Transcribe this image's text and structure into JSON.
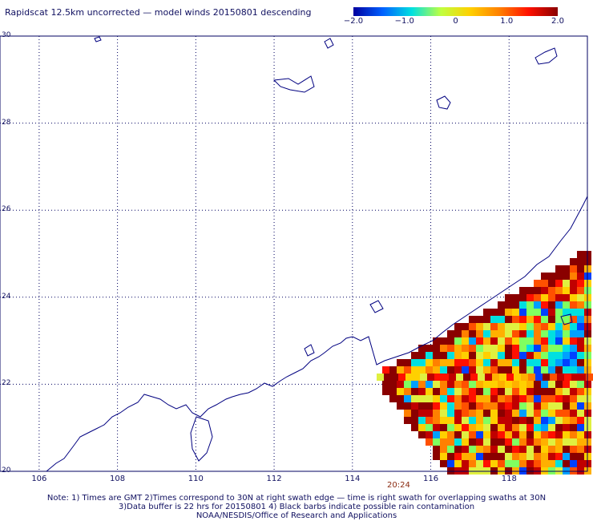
{
  "title": "Rapidscat 12.5km uncorrected — model winds 20150801 descending",
  "colorbar": {
    "ticks": [
      "−2.0",
      "−1.0",
      "0",
      "1.0",
      "2.0"
    ],
    "tick_values": [
      -2.0,
      -1.0,
      0,
      1.0,
      2.0
    ],
    "range": [
      -2.0,
      2.0
    ],
    "colors": [
      "#0000a0",
      "#0060ff",
      "#00e0e0",
      "#c0ff40",
      "#ffd000",
      "#ff8000",
      "#ff1000",
      "#8a0000"
    ]
  },
  "map": {
    "lon_range": [
      105,
      120
    ],
    "lat_range": [
      20,
      30
    ],
    "y_labels": [
      "30",
      "28",
      "26",
      "24",
      "22",
      "20"
    ],
    "x_labels": [
      "106",
      "108",
      "110",
      "112",
      "114",
      "116",
      "118"
    ],
    "coast_color": "#000080",
    "grid_style": "dotted"
  },
  "time_label": "20:24",
  "notes": [
    "Note: 1) Times are GMT 2)Times correspond to 30N at right swath edge — time is right swath for overlapping swaths at 30N",
    "3)Data buffer is 22 hrs for 20150801 4) Black barbs indicate possible rain contamination",
    "NOAA/NESDIS/Office of Research and Applications"
  ]
}
